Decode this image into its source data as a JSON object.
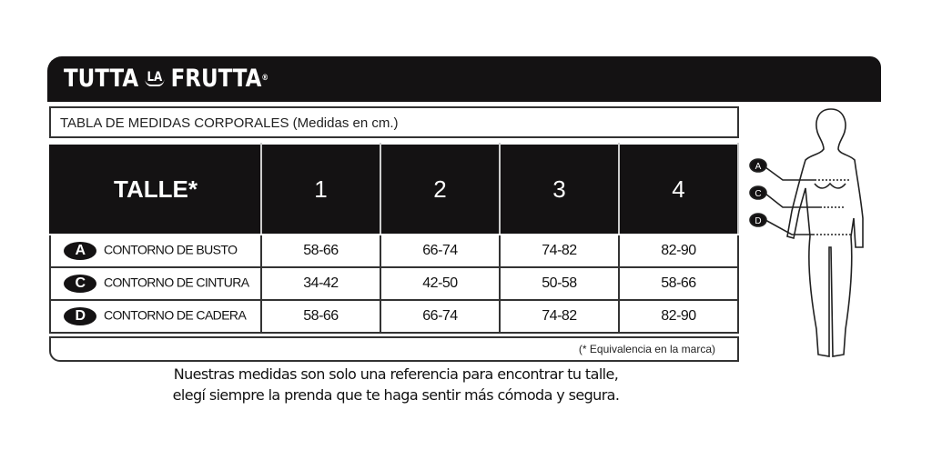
{
  "brand": {
    "name_left": "TUTTA",
    "name_mid": "LA",
    "name_right": "FRUTTA",
    "registered": "®"
  },
  "title": "TABLA DE MEDIDAS CORPORALES (Medidas en cm.)",
  "table": {
    "header": {
      "label": "TALLE*",
      "sizes": [
        "1",
        "2",
        "3",
        "4"
      ]
    },
    "rows": [
      {
        "badge": "A",
        "label": "CONTORNO DE  BUSTO",
        "values": [
          "58-66",
          "66-74",
          "74-82",
          "82-90"
        ]
      },
      {
        "badge": "C",
        "label": "CONTORNO DE CINTURA",
        "values": [
          "34-42",
          "42-50",
          "50-58",
          "58-66"
        ]
      },
      {
        "badge": "D",
        "label": "CONTORNO DE CADERA",
        "values": [
          "58-66",
          "66-74",
          "74-82",
          "82-90"
        ]
      }
    ]
  },
  "footnote": "(* Equivalencia en la marca)",
  "note_lines": [
    "Nuestras medidas son solo una referencia para encontrar tu talle,",
    "elegí siempre la prenda que te haga sentir más cómoda y segura."
  ],
  "figure_labels": [
    "A",
    "C",
    "D"
  ]
}
